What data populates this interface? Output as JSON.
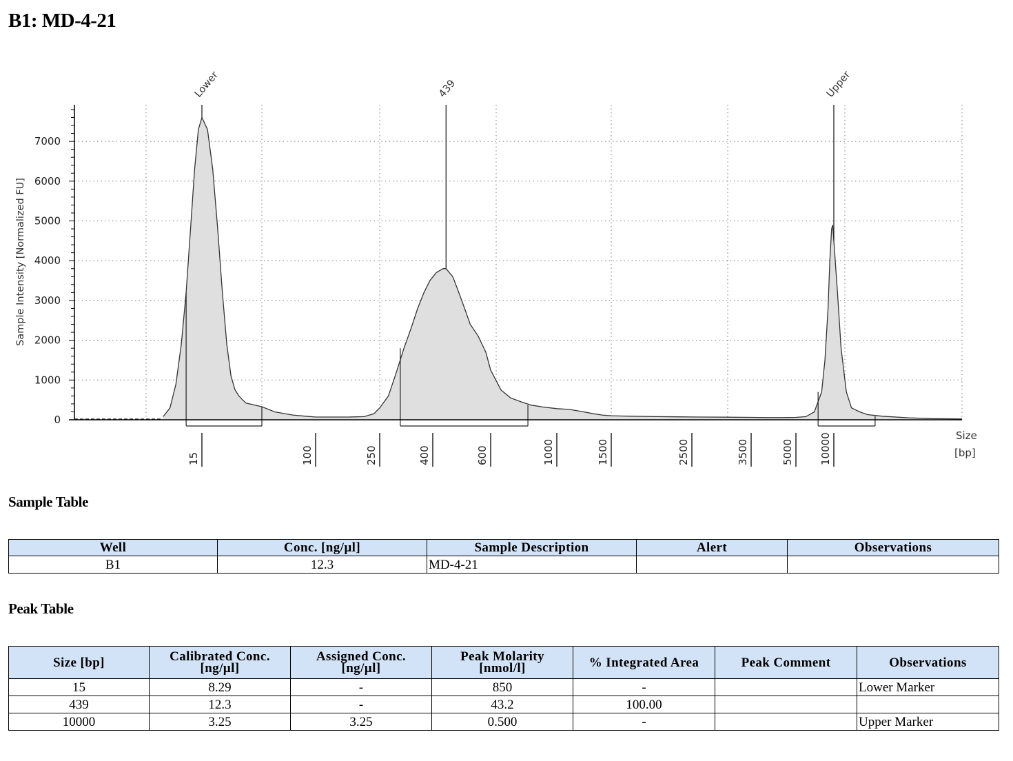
{
  "title": "B1: MD-4-21",
  "chart_data": {
    "type": "area",
    "ylabel": "Sample Intensity [Normalized FU]",
    "xlabel": "Size",
    "xunit": "[bp]",
    "yticks": [
      0,
      1000,
      2000,
      3000,
      4000,
      5000,
      6000,
      7000
    ],
    "ylim": [
      0,
      7900
    ],
    "xticks": [
      "15",
      "100",
      "250",
      "400",
      "600",
      "1000",
      "1500",
      "2500",
      "3500",
      "5000",
      "10000"
    ],
    "grid": true,
    "series": [
      {
        "x": [
          1,
          2,
          3,
          4,
          5,
          6,
          7,
          8,
          9,
          10,
          11,
          12,
          13,
          14,
          15,
          16,
          17,
          18,
          19,
          20,
          21,
          22,
          23,
          24,
          25,
          30,
          40,
          60,
          80,
          100,
          130,
          160,
          200,
          230,
          250,
          270,
          290,
          310,
          330,
          350,
          370,
          390,
          410,
          430,
          439,
          460,
          480,
          500,
          520,
          550,
          580,
          600,
          650,
          700,
          760,
          820,
          900,
          1000,
          1100,
          1200,
          1300,
          1400,
          1500,
          1700,
          2000,
          2300,
          2600,
          3000,
          3500,
          4000,
          4500,
          5000,
          6000,
          7000,
          8000,
          8500,
          9000,
          9300,
          9600,
          9800,
          10000,
          10200,
          10400,
          10700,
          11000,
          11500,
          12000,
          13000,
          15000,
          17000,
          20000
        ],
        "y": [
          25,
          20,
          20,
          20,
          22,
          30,
          80,
          300,
          900,
          1900,
          3200,
          4800,
          6300,
          7300,
          7600,
          7300,
          6300,
          4800,
          3200,
          1900,
          1100,
          750,
          600,
          500,
          420,
          330,
          200,
          120,
          90,
          70,
          70,
          70,
          80,
          150,
          300,
          600,
          1200,
          1800,
          2300,
          2800,
          3200,
          3500,
          3700,
          3800,
          3800,
          3600,
          3200,
          2800,
          2400,
          2100,
          1700,
          1250,
          750,
          550,
          450,
          370,
          320,
          280,
          260,
          210,
          160,
          120,
          100,
          90,
          80,
          75,
          70,
          65,
          60,
          55,
          55,
          60,
          80,
          200,
          700,
          1500,
          2800,
          4000,
          4800,
          4900,
          4500,
          3200,
          1800,
          700,
          300,
          200,
          130,
          90,
          50,
          30,
          20
        ]
      }
    ],
    "peaks": [
      {
        "label": "Lower",
        "x": 15
      },
      {
        "label": "439",
        "x": 439
      },
      {
        "label": "Upper",
        "x": 10000
      }
    ],
    "integration_ranges": [
      [
        11,
        30
      ],
      [
        300,
        800
      ],
      [
        7500,
        12500
      ]
    ]
  },
  "sample_table": {
    "title": "Sample Table",
    "headers": [
      "Well",
      "Conc. [ng/µl]",
      "Sample Description",
      "Alert",
      "Observations"
    ],
    "rows": [
      [
        "B1",
        "12.3",
        "MD-4-21",
        "",
        ""
      ]
    ]
  },
  "peak_table": {
    "title": "Peak Table",
    "headers": [
      [
        "Size [bp]"
      ],
      [
        "Calibrated Conc.",
        "[ng/µl]"
      ],
      [
        "Assigned Conc.",
        "[ng/µl]"
      ],
      [
        "Peak Molarity",
        "[nmol/l]"
      ],
      [
        "% Integrated Area"
      ],
      [
        "Peak Comment"
      ],
      [
        "Observations"
      ]
    ],
    "rows": [
      [
        "15",
        "8.29",
        "-",
        "850",
        "-",
        "",
        "Lower Marker"
      ],
      [
        "439",
        "12.3",
        "-",
        "43.2",
        "100.00",
        "",
        ""
      ],
      [
        "10000",
        "3.25",
        "3.25",
        "0.500",
        "-",
        "",
        "Upper Marker"
      ]
    ]
  }
}
